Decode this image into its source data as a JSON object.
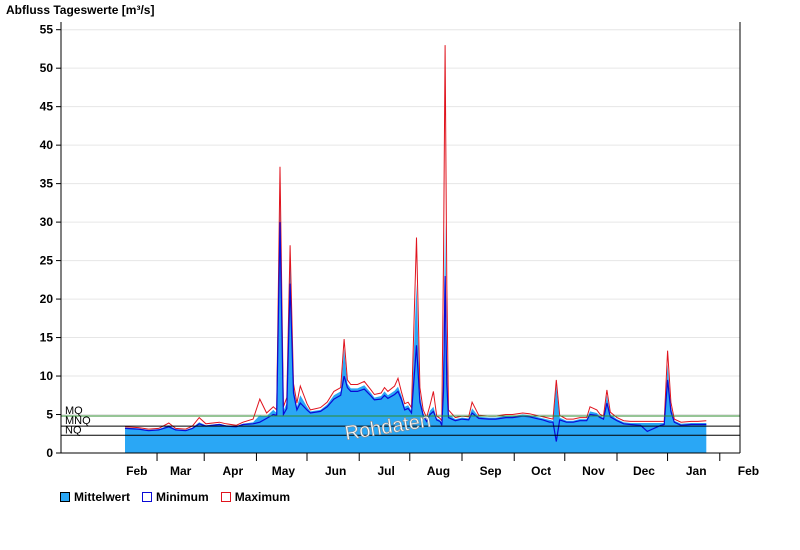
{
  "chart_data": {
    "type": "area",
    "title": "Abfluss Tageswerte [m³/s]",
    "watermark": "Rohdaten",
    "ylim": [
      0,
      56
    ],
    "yticks": [
      0,
      5,
      10,
      15,
      20,
      25,
      30,
      35,
      40,
      45,
      50,
      55
    ],
    "grid": true,
    "legend_position": "bottom-left",
    "xlim": [
      0,
      365
    ],
    "month_labels": [
      {
        "label": "Feb",
        "day": 7
      },
      {
        "label": "Mar",
        "day": 33
      },
      {
        "label": "Apr",
        "day": 64
      },
      {
        "label": "May",
        "day": 94
      },
      {
        "label": "Jun",
        "day": 125
      },
      {
        "label": "Jul",
        "day": 155
      },
      {
        "label": "Aug",
        "day": 186
      },
      {
        "label": "Sep",
        "day": 217
      },
      {
        "label": "Oct",
        "day": 247
      },
      {
        "label": "Nov",
        "day": 278
      },
      {
        "label": "Dec",
        "day": 308
      },
      {
        "label": "Jan",
        "day": 339
      },
      {
        "label": "Feb",
        "day": 370
      }
    ],
    "month_boundaries": [
      19,
      47,
      78,
      108,
      139,
      169,
      200,
      231,
      261,
      292,
      322,
      353
    ],
    "reference_lines": [
      {
        "name": "MQ",
        "value": 4.8,
        "color": "#2e8b2e"
      },
      {
        "name": "MNQ",
        "value": 3.5,
        "color": "#000000"
      },
      {
        "name": "NQ",
        "value": 2.3,
        "color": "#000000"
      }
    ],
    "series": [
      {
        "name": "Mittelwert",
        "color": "#2aa7f5",
        "points": [
          [
            0,
            3.3
          ],
          [
            8,
            3.2
          ],
          [
            14,
            3.0
          ],
          [
            20,
            3.1
          ],
          [
            26,
            3.6
          ],
          [
            30,
            3.1
          ],
          [
            36,
            3.0
          ],
          [
            40,
            3.3
          ],
          [
            44,
            4.0
          ],
          [
            48,
            3.6
          ],
          [
            56,
            3.8
          ],
          [
            60,
            3.6
          ],
          [
            66,
            3.5
          ],
          [
            70,
            3.8
          ],
          [
            76,
            4.0
          ],
          [
            80,
            4.9
          ],
          [
            84,
            4.8
          ],
          [
            88,
            5.6
          ],
          [
            90,
            5.2
          ],
          [
            92,
            33.0
          ],
          [
            94,
            5.5
          ],
          [
            96,
            6.5
          ],
          [
            98,
            26.0
          ],
          [
            100,
            8.5
          ],
          [
            102,
            6.0
          ],
          [
            104,
            7.5
          ],
          [
            108,
            6.0
          ],
          [
            110,
            5.4
          ],
          [
            116,
            5.6
          ],
          [
            120,
            6.3
          ],
          [
            124,
            7.5
          ],
          [
            128,
            8.0
          ],
          [
            130,
            13.5
          ],
          [
            132,
            9.0
          ],
          [
            134,
            8.4
          ],
          [
            138,
            8.4
          ],
          [
            142,
            8.8
          ],
          [
            146,
            7.8
          ],
          [
            148,
            7.2
          ],
          [
            152,
            7.4
          ],
          [
            154,
            8.0
          ],
          [
            156,
            7.5
          ],
          [
            160,
            8.1
          ],
          [
            162,
            8.6
          ],
          [
            164,
            7.5
          ],
          [
            166,
            6.0
          ],
          [
            168,
            6.2
          ],
          [
            170,
            5.5
          ],
          [
            173,
            22.0
          ],
          [
            175,
            7.5
          ],
          [
            177,
            5.2
          ],
          [
            179,
            4.3
          ],
          [
            181,
            5.5
          ],
          [
            183,
            6.0
          ],
          [
            185,
            4.5
          ],
          [
            187,
            4.3
          ],
          [
            188,
            3.8
          ],
          [
            189,
            13.0
          ],
          [
            190,
            30.0
          ],
          [
            191,
            14.0
          ],
          [
            192,
            5.0
          ],
          [
            196,
            4.4
          ],
          [
            200,
            4.6
          ],
          [
            204,
            4.5
          ],
          [
            206,
            5.8
          ],
          [
            210,
            4.7
          ],
          [
            216,
            4.6
          ],
          [
            220,
            4.6
          ],
          [
            226,
            4.8
          ],
          [
            230,
            4.8
          ],
          [
            236,
            5.0
          ],
          [
            240,
            4.9
          ],
          [
            244,
            4.7
          ],
          [
            248,
            4.5
          ],
          [
            252,
            4.3
          ],
          [
            254,
            4.2
          ],
          [
            256,
            8.8
          ],
          [
            258,
            4.6
          ],
          [
            262,
            4.2
          ],
          [
            266,
            4.2
          ],
          [
            270,
            4.4
          ],
          [
            274,
            4.4
          ],
          [
            276,
            5.4
          ],
          [
            280,
            5.2
          ],
          [
            282,
            4.8
          ],
          [
            284,
            4.6
          ],
          [
            286,
            7.5
          ],
          [
            288,
            5.0
          ],
          [
            292,
            4.4
          ],
          [
            296,
            4.0
          ],
          [
            300,
            3.9
          ],
          [
            306,
            3.9
          ],
          [
            310,
            3.9
          ],
          [
            318,
            3.9
          ],
          [
            320,
            3.9
          ],
          [
            322,
            11.5
          ],
          [
            324,
            6.0
          ],
          [
            326,
            4.2
          ],
          [
            330,
            3.8
          ],
          [
            336,
            3.9
          ],
          [
            340,
            3.9
          ],
          [
            345,
            3.9
          ]
        ]
      },
      {
        "name": "Minimum",
        "color": "#0a0ad6",
        "points": [
          [
            0,
            3.2
          ],
          [
            8,
            3.1
          ],
          [
            14,
            2.9
          ],
          [
            20,
            3.0
          ],
          [
            26,
            3.4
          ],
          [
            30,
            3.0
          ],
          [
            36,
            2.9
          ],
          [
            40,
            3.2
          ],
          [
            44,
            3.8
          ],
          [
            48,
            3.5
          ],
          [
            56,
            3.7
          ],
          [
            60,
            3.5
          ],
          [
            66,
            3.4
          ],
          [
            70,
            3.7
          ],
          [
            76,
            3.8
          ],
          [
            80,
            4.0
          ],
          [
            84,
            4.5
          ],
          [
            88,
            5.0
          ],
          [
            90,
            4.9
          ],
          [
            92,
            30.0
          ],
          [
            94,
            5.0
          ],
          [
            96,
            5.8
          ],
          [
            98,
            22.0
          ],
          [
            100,
            7.8
          ],
          [
            102,
            5.6
          ],
          [
            104,
            6.5
          ],
          [
            108,
            5.6
          ],
          [
            110,
            5.2
          ],
          [
            116,
            5.4
          ],
          [
            120,
            6.0
          ],
          [
            124,
            7.0
          ],
          [
            128,
            7.5
          ],
          [
            130,
            10.0
          ],
          [
            132,
            8.5
          ],
          [
            134,
            8.0
          ],
          [
            138,
            8.0
          ],
          [
            142,
            8.3
          ],
          [
            146,
            7.4
          ],
          [
            148,
            6.9
          ],
          [
            152,
            7.0
          ],
          [
            154,
            7.5
          ],
          [
            156,
            7.1
          ],
          [
            160,
            7.6
          ],
          [
            162,
            8.0
          ],
          [
            164,
            7.0
          ],
          [
            166,
            5.6
          ],
          [
            168,
            5.8
          ],
          [
            170,
            5.2
          ],
          [
            173,
            14.0
          ],
          [
            175,
            6.6
          ],
          [
            177,
            4.9
          ],
          [
            179,
            4.1
          ],
          [
            181,
            5.0
          ],
          [
            183,
            5.4
          ],
          [
            185,
            4.3
          ],
          [
            187,
            4.1
          ],
          [
            188,
            3.6
          ],
          [
            189,
            8.0
          ],
          [
            190,
            23.0
          ],
          [
            191,
            9.0
          ],
          [
            192,
            4.6
          ],
          [
            196,
            4.2
          ],
          [
            200,
            4.4
          ],
          [
            204,
            4.3
          ],
          [
            206,
            5.2
          ],
          [
            210,
            4.5
          ],
          [
            216,
            4.4
          ],
          [
            220,
            4.4
          ],
          [
            226,
            4.6
          ],
          [
            230,
            4.6
          ],
          [
            236,
            4.8
          ],
          [
            240,
            4.7
          ],
          [
            244,
            4.5
          ],
          [
            248,
            4.3
          ],
          [
            252,
            4.0
          ],
          [
            254,
            4.0
          ],
          [
            256,
            1.5
          ],
          [
            258,
            4.3
          ],
          [
            262,
            4.0
          ],
          [
            266,
            4.0
          ],
          [
            270,
            4.2
          ],
          [
            274,
            4.2
          ],
          [
            276,
            5.0
          ],
          [
            280,
            4.9
          ],
          [
            282,
            4.6
          ],
          [
            284,
            4.4
          ],
          [
            286,
            6.5
          ],
          [
            288,
            4.7
          ],
          [
            292,
            4.2
          ],
          [
            296,
            3.8
          ],
          [
            300,
            3.7
          ],
          [
            306,
            3.6
          ],
          [
            310,
            2.8
          ],
          [
            318,
            3.6
          ],
          [
            320,
            3.7
          ],
          [
            322,
            9.5
          ],
          [
            324,
            5.4
          ],
          [
            326,
            4.0
          ],
          [
            330,
            3.6
          ],
          [
            336,
            3.7
          ],
          [
            340,
            3.7
          ],
          [
            345,
            3.7
          ]
        ]
      },
      {
        "name": "Maximum",
        "color": "#e0141e",
        "points": [
          [
            0,
            3.4
          ],
          [
            8,
            3.3
          ],
          [
            14,
            3.1
          ],
          [
            20,
            3.2
          ],
          [
            26,
            3.9
          ],
          [
            30,
            3.2
          ],
          [
            36,
            3.1
          ],
          [
            40,
            3.5
          ],
          [
            44,
            4.6
          ],
          [
            48,
            3.8
          ],
          [
            56,
            4.0
          ],
          [
            60,
            3.8
          ],
          [
            66,
            3.6
          ],
          [
            70,
            4.0
          ],
          [
            76,
            4.4
          ],
          [
            80,
            7.0
          ],
          [
            84,
            5.2
          ],
          [
            88,
            6.0
          ],
          [
            90,
            5.6
          ],
          [
            92,
            37.2
          ],
          [
            94,
            6.0
          ],
          [
            96,
            7.2
          ],
          [
            98,
            27.0
          ],
          [
            100,
            9.0
          ],
          [
            102,
            6.5
          ],
          [
            104,
            8.7
          ],
          [
            108,
            6.4
          ],
          [
            110,
            5.6
          ],
          [
            116,
            5.9
          ],
          [
            120,
            6.6
          ],
          [
            124,
            8.0
          ],
          [
            128,
            8.5
          ],
          [
            130,
            14.8
          ],
          [
            132,
            9.5
          ],
          [
            134,
            8.9
          ],
          [
            138,
            8.9
          ],
          [
            142,
            9.3
          ],
          [
            146,
            8.2
          ],
          [
            148,
            7.6
          ],
          [
            152,
            7.8
          ],
          [
            154,
            8.5
          ],
          [
            156,
            8.0
          ],
          [
            160,
            8.7
          ],
          [
            162,
            9.7
          ],
          [
            164,
            8.0
          ],
          [
            166,
            6.4
          ],
          [
            168,
            6.6
          ],
          [
            170,
            5.9
          ],
          [
            173,
            28.0
          ],
          [
            175,
            8.5
          ],
          [
            177,
            5.6
          ],
          [
            179,
            4.6
          ],
          [
            181,
            6.2
          ],
          [
            183,
            8.0
          ],
          [
            185,
            4.8
          ],
          [
            187,
            4.5
          ],
          [
            188,
            4.2
          ],
          [
            189,
            25.0
          ],
          [
            190,
            53.0
          ],
          [
            191,
            22.0
          ],
          [
            192,
            5.6
          ],
          [
            196,
            4.6
          ],
          [
            200,
            4.8
          ],
          [
            204,
            4.7
          ],
          [
            206,
            6.6
          ],
          [
            210,
            4.9
          ],
          [
            216,
            4.8
          ],
          [
            220,
            4.8
          ],
          [
            226,
            5.0
          ],
          [
            230,
            5.0
          ],
          [
            236,
            5.2
          ],
          [
            240,
            5.1
          ],
          [
            244,
            4.9
          ],
          [
            248,
            4.7
          ],
          [
            252,
            4.5
          ],
          [
            254,
            4.4
          ],
          [
            256,
            9.5
          ],
          [
            258,
            4.9
          ],
          [
            262,
            4.4
          ],
          [
            266,
            4.4
          ],
          [
            270,
            4.6
          ],
          [
            274,
            4.6
          ],
          [
            276,
            6.0
          ],
          [
            280,
            5.6
          ],
          [
            282,
            5.0
          ],
          [
            284,
            4.8
          ],
          [
            286,
            8.2
          ],
          [
            288,
            5.3
          ],
          [
            292,
            4.6
          ],
          [
            296,
            4.2
          ],
          [
            300,
            4.1
          ],
          [
            306,
            4.1
          ],
          [
            310,
            4.1
          ],
          [
            318,
            4.1
          ],
          [
            320,
            4.1
          ],
          [
            322,
            13.3
          ],
          [
            324,
            6.6
          ],
          [
            326,
            4.4
          ],
          [
            330,
            4.0
          ],
          [
            336,
            4.1
          ],
          [
            340,
            4.1
          ],
          [
            345,
            4.2
          ]
        ]
      }
    ]
  }
}
